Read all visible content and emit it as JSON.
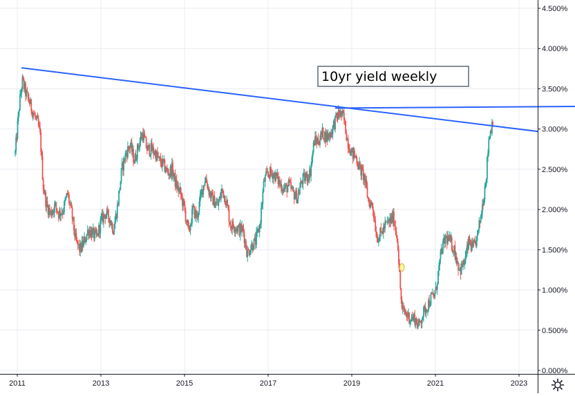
{
  "chart_data": {
    "type": "candlestick",
    "title": "",
    "annotation": "10yr yield weekly",
    "xlabel": "",
    "ylabel": "",
    "xlim": [
      2010.9,
      2023.75
    ],
    "ylim": [
      0.0,
      4.6
    ],
    "y_ticks": [
      "0.000%",
      "0.500%",
      "1.000%",
      "1.500%",
      "2.000%",
      "2.500%",
      "3.000%",
      "3.500%",
      "4.000%",
      "4.500%"
    ],
    "y_tick_values": [
      0.0,
      0.5,
      1.0,
      1.5,
      2.0,
      2.5,
      3.0,
      3.5,
      4.0,
      4.5
    ],
    "x_ticks": [
      "2011",
      "2013",
      "2015",
      "2017",
      "2019",
      "2021",
      "2023"
    ],
    "x_tick_values": [
      2011.0,
      2013.0,
      2015.0,
      2017.0,
      2019.0,
      2021.0,
      2023.0
    ],
    "grid": true,
    "up_color": "#26a69a",
    "down_color": "#ef5350",
    "trendline_color": "#2962ff",
    "path": [
      [
        2010.95,
        2.7
      ],
      [
        2011.05,
        3.3
      ],
      [
        2011.12,
        3.6
      ],
      [
        2011.2,
        3.45
      ],
      [
        2011.28,
        3.35
      ],
      [
        2011.38,
        3.2
      ],
      [
        2011.5,
        3.05
      ],
      [
        2011.55,
        2.9
      ],
      [
        2011.62,
        2.3
      ],
      [
        2011.7,
        2.05
      ],
      [
        2011.8,
        1.95
      ],
      [
        2011.9,
        2.05
      ],
      [
        2012.0,
        1.95
      ],
      [
        2012.1,
        2.0
      ],
      [
        2012.2,
        2.2
      ],
      [
        2012.3,
        1.95
      ],
      [
        2012.4,
        1.6
      ],
      [
        2012.5,
        1.5
      ],
      [
        2012.6,
        1.6
      ],
      [
        2012.7,
        1.75
      ],
      [
        2012.8,
        1.7
      ],
      [
        2012.9,
        1.65
      ],
      [
        2013.0,
        1.85
      ],
      [
        2013.1,
        1.95
      ],
      [
        2013.2,
        1.9
      ],
      [
        2013.3,
        1.75
      ],
      [
        2013.4,
        2.05
      ],
      [
        2013.5,
        2.5
      ],
      [
        2013.6,
        2.7
      ],
      [
        2013.7,
        2.8
      ],
      [
        2013.8,
        2.6
      ],
      [
        2013.9,
        2.8
      ],
      [
        2014.0,
        2.95
      ],
      [
        2014.1,
        2.75
      ],
      [
        2014.2,
        2.75
      ],
      [
        2014.3,
        2.7
      ],
      [
        2014.4,
        2.6
      ],
      [
        2014.5,
        2.55
      ],
      [
        2014.6,
        2.45
      ],
      [
        2014.7,
        2.5
      ],
      [
        2014.8,
        2.3
      ],
      [
        2014.9,
        2.2
      ],
      [
        2015.0,
        2.0
      ],
      [
        2015.1,
        1.7
      ],
      [
        2015.2,
        2.0
      ],
      [
        2015.3,
        1.9
      ],
      [
        2015.4,
        2.2
      ],
      [
        2015.5,
        2.4
      ],
      [
        2015.6,
        2.2
      ],
      [
        2015.7,
        2.1
      ],
      [
        2015.8,
        2.05
      ],
      [
        2015.9,
        2.25
      ],
      [
        2016.0,
        2.1
      ],
      [
        2016.1,
        1.8
      ],
      [
        2016.2,
        1.8
      ],
      [
        2016.3,
        1.75
      ],
      [
        2016.4,
        1.75
      ],
      [
        2016.5,
        1.45
      ],
      [
        2016.6,
        1.55
      ],
      [
        2016.7,
        1.6
      ],
      [
        2016.8,
        1.8
      ],
      [
        2016.9,
        2.35
      ],
      [
        2017.0,
        2.45
      ],
      [
        2017.1,
        2.45
      ],
      [
        2017.2,
        2.4
      ],
      [
        2017.3,
        2.3
      ],
      [
        2017.4,
        2.25
      ],
      [
        2017.5,
        2.3
      ],
      [
        2017.6,
        2.2
      ],
      [
        2017.7,
        2.15
      ],
      [
        2017.8,
        2.35
      ],
      [
        2017.9,
        2.4
      ],
      [
        2018.0,
        2.45
      ],
      [
        2018.1,
        2.85
      ],
      [
        2018.2,
        2.85
      ],
      [
        2018.3,
        2.95
      ],
      [
        2018.4,
        2.9
      ],
      [
        2018.5,
        2.95
      ],
      [
        2018.6,
        3.1
      ],
      [
        2018.7,
        3.2
      ],
      [
        2018.8,
        3.15
      ],
      [
        2018.9,
        2.85
      ],
      [
        2019.0,
        2.7
      ],
      [
        2019.1,
        2.65
      ],
      [
        2019.2,
        2.5
      ],
      [
        2019.3,
        2.4
      ],
      [
        2019.4,
        2.1
      ],
      [
        2019.5,
        2.05
      ],
      [
        2019.6,
        1.65
      ],
      [
        2019.7,
        1.7
      ],
      [
        2019.8,
        1.8
      ],
      [
        2019.9,
        1.85
      ],
      [
        2020.0,
        1.9
      ],
      [
        2020.1,
        1.6
      ],
      [
        2020.15,
        1.1
      ],
      [
        2020.2,
        0.75
      ],
      [
        2020.3,
        0.7
      ],
      [
        2020.4,
        0.65
      ],
      [
        2020.5,
        0.65
      ],
      [
        2020.6,
        0.55
      ],
      [
        2020.7,
        0.7
      ],
      [
        2020.8,
        0.8
      ],
      [
        2020.9,
        0.9
      ],
      [
        2021.0,
        0.95
      ],
      [
        2021.05,
        1.15
      ],
      [
        2021.15,
        1.5
      ],
      [
        2021.25,
        1.65
      ],
      [
        2021.35,
        1.6
      ],
      [
        2021.45,
        1.5
      ],
      [
        2021.55,
        1.3
      ],
      [
        2021.6,
        1.25
      ],
      [
        2021.7,
        1.35
      ],
      [
        2021.8,
        1.6
      ],
      [
        2021.9,
        1.5
      ],
      [
        2022.0,
        1.65
      ],
      [
        2022.08,
        1.9
      ],
      [
        2022.15,
        2.15
      ],
      [
        2022.22,
        2.45
      ],
      [
        2022.28,
        2.9
      ],
      [
        2022.33,
        3.0
      ],
      [
        2022.38,
        3.15
      ]
    ]
  }
}
